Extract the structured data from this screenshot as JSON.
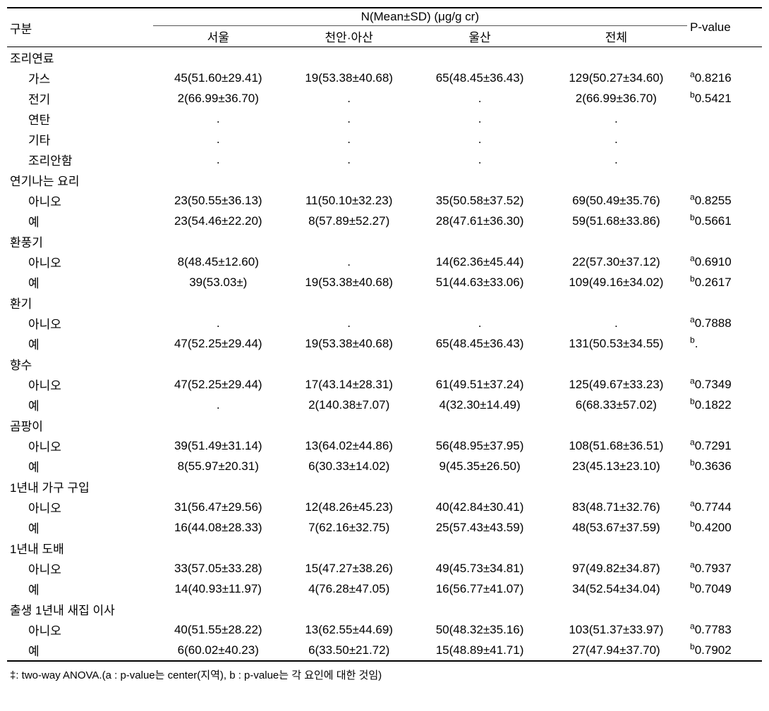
{
  "headers": {
    "category": "구분",
    "groupHeader": "N(Mean±SD)  (μg/g cr)",
    "seoul": "서울",
    "cheonan": "천안·아산",
    "ulsan": "울산",
    "total": "전체",
    "pvalue": "P-value"
  },
  "sections": [
    {
      "title": "조리연료",
      "rows": [
        {
          "label": "가스",
          "seoul": "45(51.60±29.41)",
          "cheonan": "19(53.38±40.68)",
          "ulsan": "65(48.45±36.43)",
          "total": "129(50.27±34.60)",
          "pvalue_sup": "a",
          "pvalue": "0.8216"
        },
        {
          "label": "전기",
          "seoul": "2(66.99±36.70)",
          "cheonan": ".",
          "ulsan": ".",
          "total": "2(66.99±36.70)",
          "pvalue_sup": "b",
          "pvalue": "0.5421"
        },
        {
          "label": "연탄",
          "seoul": ".",
          "cheonan": ".",
          "ulsan": ".",
          "total": ".",
          "pvalue_sup": "",
          "pvalue": ""
        },
        {
          "label": "기타",
          "seoul": ".",
          "cheonan": ".",
          "ulsan": ".",
          "total": ".",
          "pvalue_sup": "",
          "pvalue": ""
        },
        {
          "label": "조리안함",
          "seoul": ".",
          "cheonan": ".",
          "ulsan": ".",
          "total": ".",
          "pvalue_sup": "",
          "pvalue": ""
        }
      ]
    },
    {
      "title": "연기나는 요리",
      "rows": [
        {
          "label": "아니오",
          "seoul": "23(50.55±36.13)",
          "cheonan": "11(50.10±32.23)",
          "ulsan": "35(50.58±37.52)",
          "total": "69(50.49±35.76)",
          "pvalue_sup": "a",
          "pvalue": "0.8255"
        },
        {
          "label": "예",
          "seoul": "23(54.46±22.20)",
          "cheonan": "8(57.89±52.27)",
          "ulsan": "28(47.61±36.30)",
          "total": "59(51.68±33.86)",
          "pvalue_sup": "b",
          "pvalue": "0.5661"
        }
      ]
    },
    {
      "title": "환풍기",
      "rows": [
        {
          "label": "아니오",
          "seoul": "8(48.45±12.60)",
          "cheonan": ".",
          "ulsan": "14(62.36±45.44)",
          "total": "22(57.30±37.12)",
          "pvalue_sup": "a",
          "pvalue": "0.6910"
        },
        {
          "label": "예",
          "seoul": "39(53.03±)",
          "cheonan": "19(53.38±40.68)",
          "ulsan": "51(44.63±33.06)",
          "total": "109(49.16±34.02)",
          "pvalue_sup": "b",
          "pvalue": "0.2617"
        }
      ]
    },
    {
      "title": "환기",
      "rows": [
        {
          "label": "아니오",
          "seoul": ".",
          "cheonan": ".",
          "ulsan": ".",
          "total": ".",
          "pvalue_sup": "a",
          "pvalue": "0.7888"
        },
        {
          "label": "예",
          "seoul": "47(52.25±29.44)",
          "cheonan": "19(53.38±40.68)",
          "ulsan": "65(48.45±36.43)",
          "total": "131(50.53±34.55)",
          "pvalue_sup": "b",
          "pvalue": "."
        }
      ]
    },
    {
      "title": "향수",
      "rows": [
        {
          "label": "아니오",
          "seoul": "47(52.25±29.44)",
          "cheonan": "17(43.14±28.31)",
          "ulsan": "61(49.51±37.24)",
          "total": "125(49.67±33.23)",
          "pvalue_sup": "a",
          "pvalue": "0.7349"
        },
        {
          "label": "예",
          "seoul": ".",
          "cheonan": "2(140.38±7.07)",
          "ulsan": "4(32.30±14.49)",
          "total": "6(68.33±57.02)",
          "pvalue_sup": "b",
          "pvalue": "0.1822"
        }
      ]
    },
    {
      "title": "곰팡이",
      "rows": [
        {
          "label": "아니오",
          "seoul": "39(51.49±31.14)",
          "cheonan": "13(64.02±44.86)",
          "ulsan": "56(48.95±37.95)",
          "total": "108(51.68±36.51)",
          "pvalue_sup": "a",
          "pvalue": "0.7291"
        },
        {
          "label": "예",
          "seoul": "8(55.97±20.31)",
          "cheonan": "6(30.33±14.02)",
          "ulsan": "9(45.35±26.50)",
          "total": "23(45.13±23.10)",
          "pvalue_sup": "b",
          "pvalue": "0.3636"
        }
      ]
    },
    {
      "title": "1년내 가구 구입",
      "rows": [
        {
          "label": "아니오",
          "seoul": "31(56.47±29.56)",
          "cheonan": "12(48.26±45.23)",
          "ulsan": "40(42.84±30.41)",
          "total": "83(48.71±32.76)",
          "pvalue_sup": "a",
          "pvalue": "0.7744"
        },
        {
          "label": "예",
          "seoul": "16(44.08±28.33)",
          "cheonan": "7(62.16±32.75)",
          "ulsan": "25(57.43±43.59)",
          "total": "48(53.67±37.59)",
          "pvalue_sup": "b",
          "pvalue": "0.4200"
        }
      ]
    },
    {
      "title": "1년내 도배",
      "rows": [
        {
          "label": "아니오",
          "seoul": "33(57.05±33.28)",
          "cheonan": "15(47.27±38.26)",
          "ulsan": "49(45.73±34.81)",
          "total": "97(49.82±34.87)",
          "pvalue_sup": "a",
          "pvalue": "0.7937"
        },
        {
          "label": "예",
          "seoul": "14(40.93±11.97)",
          "cheonan": "4(76.28±47.05)",
          "ulsan": "16(56.77±41.07)",
          "total": "34(52.54±34.04)",
          "pvalue_sup": "b",
          "pvalue": "0.7049"
        }
      ]
    },
    {
      "title": "출생 1년내 새집 이사",
      "rows": [
        {
          "label": "아니오",
          "seoul": "40(51.55±28.22)",
          "cheonan": "13(62.55±44.69)",
          "ulsan": "50(48.32±35.16)",
          "total": "103(51.37±33.97)",
          "pvalue_sup": "a",
          "pvalue": "0.7783"
        },
        {
          "label": "예",
          "seoul": "6(60.02±40.23)",
          "cheonan": "6(33.50±21.72)",
          "ulsan": "15(48.89±41.71)",
          "total": "27(47.94±37.70)",
          "pvalue_sup": "b",
          "pvalue": "0.7902"
        }
      ]
    }
  ],
  "footnote": "‡: two-way ANOVA.(a : p-value는 center(지역), b : p-value는 각 요인에 대한 것임)"
}
